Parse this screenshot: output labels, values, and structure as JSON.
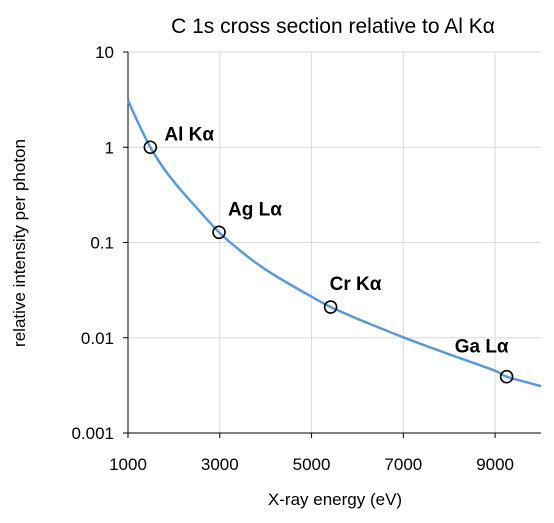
{
  "chart_data": {
    "type": "line",
    "title": "C 1s cross section relative to Al Kα",
    "xlabel": "X-ray energy (eV)",
    "ylabel": "relative intensity per photon",
    "xlim": [
      1000,
      10000
    ],
    "ylim": [
      0.001,
      10
    ],
    "yscale": "log",
    "grid": true,
    "x_ticks": [
      1000,
      3000,
      5000,
      7000,
      9000
    ],
    "x_tick_labels": [
      "1000",
      "3000",
      "5000",
      "7000",
      "9000"
    ],
    "y_ticks": [
      0.001,
      0.01,
      0.1,
      1,
      10
    ],
    "y_tick_labels": [
      "0.001",
      "0.01",
      "0.1",
      "1",
      "10"
    ],
    "line_color": "#5b9bd5",
    "series": [
      {
        "x": [
          1000,
          1200,
          1487,
          1800,
          2100,
          2500,
          2984,
          3500,
          4000,
          4500,
          5000,
          5415,
          6000,
          6500,
          7000,
          7500,
          8000,
          8500,
          9000,
          9251,
          9600,
          10000
        ],
        "y": [
          3.1,
          1.9,
          1.0,
          0.58,
          0.38,
          0.23,
          0.128,
          0.078,
          0.052,
          0.037,
          0.027,
          0.021,
          0.0158,
          0.0126,
          0.0101,
          0.0082,
          0.0067,
          0.0055,
          0.0045,
          0.0039,
          0.0035,
          0.0031
        ]
      }
    ],
    "points": [
      {
        "label": "Al Kα",
        "x": 1487,
        "y": 1.0
      },
      {
        "label": "Ag Lα",
        "x": 2984,
        "y": 0.128
      },
      {
        "label": "Cr Kα",
        "x": 5415,
        "y": 0.021
      },
      {
        "label": "Ga Lα",
        "x": 9251,
        "y": 0.0039
      }
    ]
  }
}
